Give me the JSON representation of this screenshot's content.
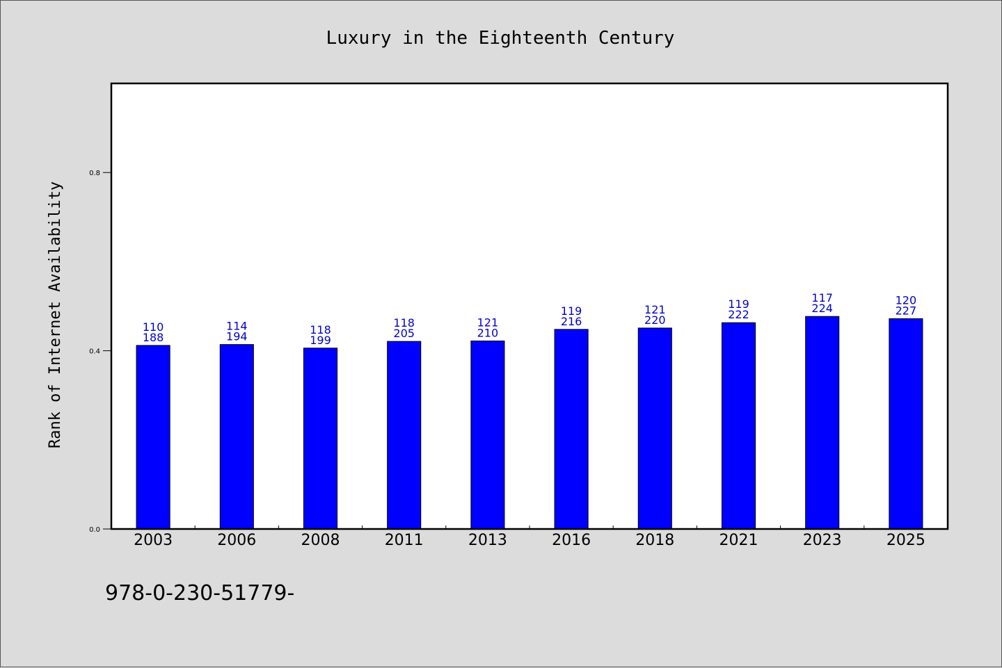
{
  "chart_data": {
    "type": "bar",
    "title": "Luxury in the Eighteenth Century",
    "xlabel": "",
    "ylabel": "Rank of Internet Availability",
    "categories": [
      "2003",
      "2006",
      "2008",
      "2011",
      "2013",
      "2016",
      "2018",
      "2021",
      "2023",
      "2025"
    ],
    "values": [
      0.412,
      0.414,
      0.406,
      0.421,
      0.422,
      0.448,
      0.451,
      0.463,
      0.477,
      0.472
    ],
    "label_top": [
      "110",
      "114",
      "118",
      "118",
      "121",
      "119",
      "121",
      "119",
      "117",
      "120"
    ],
    "label_bottom": [
      "188",
      "194",
      "199",
      "205",
      "210",
      "216",
      "220",
      "222",
      "224",
      "227"
    ],
    "ylim": [
      0,
      1.0
    ],
    "yticks": [
      "0.0",
      "0.4",
      "0.8"
    ],
    "grid": false,
    "bar_color": "#0000ff",
    "label_color": "#0000cc"
  },
  "footer_text": "978-0-230-51779-"
}
